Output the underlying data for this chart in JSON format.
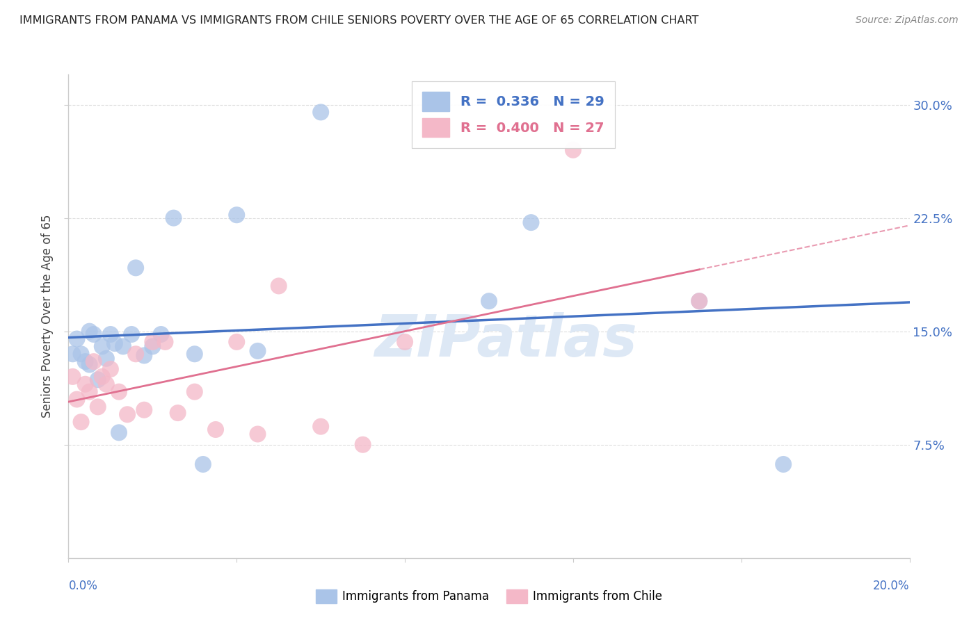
{
  "title": "IMMIGRANTS FROM PANAMA VS IMMIGRANTS FROM CHILE SENIORS POVERTY OVER THE AGE OF 65 CORRELATION CHART",
  "source": "Source: ZipAtlas.com",
  "ylabel": "Seniors Poverty Over the Age of 65",
  "xlim": [
    0.0,
    0.2
  ],
  "ylim": [
    0.0,
    0.32
  ],
  "yticks": [
    0.075,
    0.15,
    0.225,
    0.3
  ],
  "ytick_labels": [
    "7.5%",
    "15.0%",
    "22.5%",
    "30.0%"
  ],
  "legend1_label": "Immigrants from Panama",
  "legend2_label": "Immigrants from Chile",
  "R_panama": "0.336",
  "N_panama": "29",
  "R_chile": "0.400",
  "N_chile": "27",
  "color_panama": "#aac4e8",
  "color_chile": "#f4b8c8",
  "line_color_panama": "#4472c4",
  "line_color_chile": "#e07090",
  "ytick_color": "#4472c4",
  "panama_x": [
    0.001,
    0.002,
    0.003,
    0.004,
    0.005,
    0.005,
    0.006,
    0.007,
    0.008,
    0.009,
    0.01,
    0.011,
    0.012,
    0.013,
    0.015,
    0.016,
    0.018,
    0.02,
    0.022,
    0.025,
    0.03,
    0.032,
    0.04,
    0.045,
    0.06,
    0.1,
    0.11,
    0.15,
    0.17
  ],
  "panama_y": [
    0.135,
    0.145,
    0.135,
    0.13,
    0.15,
    0.128,
    0.148,
    0.118,
    0.14,
    0.132,
    0.148,
    0.142,
    0.083,
    0.14,
    0.148,
    0.192,
    0.134,
    0.14,
    0.148,
    0.225,
    0.135,
    0.062,
    0.227,
    0.137,
    0.295,
    0.17,
    0.222,
    0.17,
    0.062
  ],
  "chile_x": [
    0.001,
    0.002,
    0.003,
    0.004,
    0.005,
    0.006,
    0.007,
    0.008,
    0.009,
    0.01,
    0.012,
    0.014,
    0.016,
    0.018,
    0.02,
    0.023,
    0.026,
    0.03,
    0.035,
    0.04,
    0.045,
    0.05,
    0.06,
    0.07,
    0.08,
    0.12,
    0.15
  ],
  "chile_y": [
    0.12,
    0.105,
    0.09,
    0.115,
    0.11,
    0.13,
    0.1,
    0.12,
    0.115,
    0.125,
    0.11,
    0.095,
    0.135,
    0.098,
    0.143,
    0.143,
    0.096,
    0.11,
    0.085,
    0.143,
    0.082,
    0.18,
    0.087,
    0.075,
    0.143,
    0.27,
    0.17
  ],
  "watermark": "ZIPatlas",
  "watermark_color": "#dde8f5",
  "background_color": "#ffffff"
}
